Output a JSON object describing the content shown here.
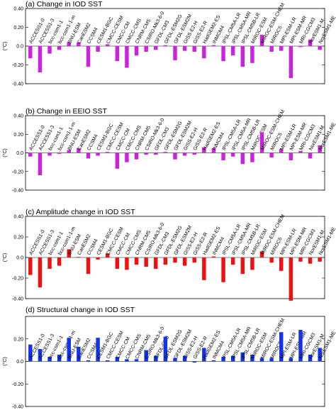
{
  "chart_data": [
    {
      "type": "bar",
      "title": "(a) Change in IOD SST",
      "ylabel": "(°C)",
      "ylim": [
        -0.4,
        0.4
      ],
      "yticks": [
        "0.40",
        "0.20",
        "0.0",
        "-0.20",
        "-0.40"
      ],
      "categories": [
        "ACCESS1-0",
        "ACCESS1-3",
        "bcc-csm1-1",
        "bcc-csm1-1-m",
        "BNU-ESM",
        "CanESM2",
        "CCSM4",
        "CESM1-BGC",
        "CMCC-CESM",
        "CMCC-CM",
        "CMCC-CMS",
        "CNRM-CM5",
        "CSIRO-Mk3-6-0",
        "GFDL-CM3",
        "GFDL-ESM2G",
        "GFDL-ESM2M",
        "GISS-E2-H",
        "GISS-E2-R",
        "HadGEM2-ES",
        "INMCM4",
        "IPSL-CM5A-LR",
        "IPSL-CM5A-MR",
        "IPSL-CM5B-LR",
        "MIROC-ESM",
        "MIROC-ESM-CHEM",
        "MIROC5",
        "MPI-ESM-LR",
        "MPI-ESM-MR",
        "MRI-CGCM3",
        "NorESM1-M",
        "NorESM1-ME"
      ],
      "values": [
        -0.13,
        -0.28,
        -0.08,
        -0.04,
        0.04,
        0.04,
        -0.22,
        -0.06,
        0.02,
        -0.16,
        -0.23,
        -0.1,
        -0.06,
        -0.04,
        0.01,
        -0.15,
        -0.05,
        -0.06,
        -0.13,
        0.01,
        -0.16,
        -0.1,
        -0.22,
        -0.18,
        0.12,
        -0.06,
        -0.05,
        -0.34,
        -0.01,
        0.07,
        -0.04
      ],
      "color": "#cc22dd"
    },
    {
      "type": "bar",
      "title": "(b) Change in EEIO SST",
      "ylabel": "(°C)",
      "ylim": [
        -0.4,
        0.4
      ],
      "yticks": [
        "0.40",
        "0.20",
        "0.0",
        "-0.20",
        "-0.40"
      ],
      "categories": [
        "ACCESS1-0",
        "ACCESS1-3",
        "bcc-csm1-1",
        "bcc-csm1-1-m",
        "BNU-ESM",
        "CanESM2",
        "CCSM4",
        "CESM1-BGC",
        "CMCC-CESM",
        "CMCC-CM",
        "CMCC-CMS",
        "CNRM-CM5",
        "CSIRO-Mk3-6-0",
        "GFDL-CM3",
        "GFDL-ESM2G",
        "GFDL-ESM2M",
        "GISS-E2-H",
        "GISS-E2-R",
        "HadGEM2-ES",
        "INMCM4",
        "IPSL-CM5A-LR",
        "IPSL-CM5A-MR",
        "IPSL-CM5B-LR",
        "MIROC-ESM",
        "MIROC-ESM-CHEM",
        "MIROC5",
        "MPI-ESM-LR",
        "MPI-ESM-MR",
        "MRI-CGCM3",
        "NorESM1-M",
        "NorESM1-ME"
      ],
      "values": [
        -0.04,
        -0.24,
        -0.03,
        -0.01,
        0.03,
        0.05,
        -0.06,
        -0.03,
        0.01,
        -0.17,
        -0.1,
        -0.07,
        -0.02,
        -0.02,
        0.01,
        -0.07,
        -0.03,
        -0.02,
        0.06,
        0.05,
        -0.08,
        -0.04,
        -0.12,
        -0.1,
        0.22,
        -0.05,
        0.04,
        -0.08,
        0.02,
        -0.06,
        0.08
      ],
      "color": "#cc22dd"
    },
    {
      "type": "bar",
      "title": "(c) Amplitude change in IOD SST",
      "ylabel": "(°C)",
      "ylim": [
        -0.4,
        0.4
      ],
      "yticks": [
        "0.40",
        "0.20",
        "0.0",
        "-0.20",
        "-0.40"
      ],
      "categories": [
        "ACCESS1-0",
        "ACCESS1-3",
        "bcc-csm1-1",
        "bcc-csm1-1-m",
        "BNU-ESM",
        "CanESM2",
        "CCSM4",
        "CESM1-BGC",
        "CMCC-CESM",
        "CMCC-CM",
        "CMCC-CMS",
        "CNRM-CM5",
        "CSIRO-Mk3-6-0",
        "GFDL-CM3",
        "GFDL-ESM2G",
        "GFDL-ESM2M",
        "GISS-E2-H",
        "GISS-E2-R",
        "HadGEM2-ES",
        "INMCM4",
        "IPSL-CM5A-LR",
        "IPSL-CM5A-MR",
        "IPSL-CM5B-LR",
        "MIROC-ESM",
        "MIROC-ESM-CHEM",
        "MIROC5",
        "MPI-ESM-LR",
        "MPI-ESM-MR",
        "MRI-CGCM3",
        "NorESM1-M",
        "NorESM1-ME"
      ],
      "values": [
        -0.17,
        -0.29,
        -0.11,
        -0.08,
        0.08,
        0.0,
        -0.16,
        -0.02,
        0.04,
        -0.11,
        -0.12,
        -0.07,
        -0.09,
        -0.11,
        -0.07,
        -0.05,
        -0.08,
        -0.05,
        -0.22,
        0.01,
        -0.24,
        -0.07,
        -0.16,
        -0.12,
        0.06,
        -0.05,
        -0.13,
        -0.42,
        -0.04,
        -0.06,
        -0.04
      ],
      "color": "#ee1111"
    },
    {
      "type": "bar",
      "title": "(d) Structural change in IOD SST",
      "ylabel": "(°C)",
      "ylim": [
        -0.4,
        0.4
      ],
      "yticks": [
        "0.20",
        "0.0",
        "-0.20",
        "-0.40"
      ],
      "categories": [
        "ACCESS1-0",
        "ACCESS1-3",
        "bcc-csm1-1",
        "bcc-csm1-1-m",
        "BNU-ESM",
        "CanESM2",
        "CCSM4",
        "CESM1-BGC",
        "CMCC-CESM",
        "CMCC-CM",
        "CMCC-CMS",
        "CNRM-CM5",
        "CSIRO-Mk3-6-0",
        "GFDL-CM3",
        "GFDL-ESM2G",
        "GFDL-ESM2M",
        "GISS-E2-H",
        "GISS-E2-R",
        "HadGEM2-ES",
        "INMCM4",
        "IPSL-CM5A-LR",
        "IPSL-CM5A-MR",
        "IPSL-CM5B-LR",
        "MIROC-ESM",
        "MIROC-ESM-CHEM",
        "MIROC5",
        "MPI-ESM-LR",
        "MPI-ESM-MR",
        "MRI-CGCM3",
        "NorESM1-M",
        "NorESM1-ME"
      ],
      "values": [
        0.15,
        0.11,
        0.04,
        0.06,
        0.21,
        0.13,
        0.01,
        0.21,
        0.01,
        0.04,
        0.02,
        0.02,
        0.1,
        0.05,
        0.22,
        0.03,
        0.05,
        -0.01,
        0.12,
        0.01,
        0.04,
        0.05,
        0.08,
        0.06,
        0.03,
        0.03,
        0.26,
        0.03,
        0.28,
        0.06,
        0.12
      ],
      "color": "#1133ee"
    }
  ]
}
